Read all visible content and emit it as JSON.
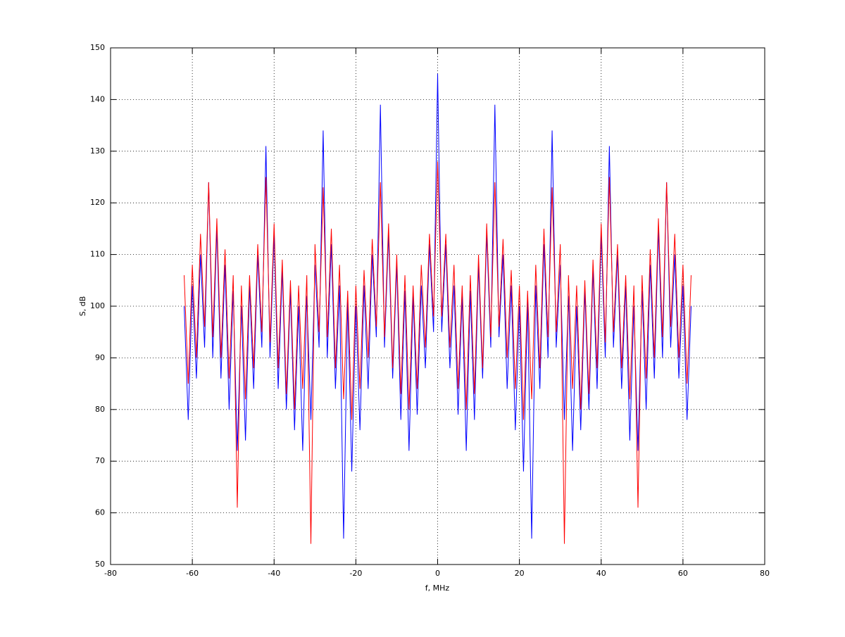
{
  "chart_data": {
    "type": "line",
    "xlabel": "f, MHz",
    "ylabel": "S, dB",
    "x": [
      -62,
      -61,
      -60,
      -59,
      -58,
      -57,
      -56,
      -55,
      -54,
      -53,
      -52,
      -51,
      -50,
      -49,
      -48,
      -47,
      -46,
      -45,
      -44,
      -43,
      -42,
      -41,
      -40,
      -39,
      -38,
      -37,
      -36,
      -35,
      -34,
      -33,
      -32,
      -31,
      -30,
      -29,
      -28,
      -27,
      -26,
      -25,
      -24,
      -23,
      -22,
      -21,
      -20,
      -19,
      -18,
      -17,
      -16,
      -15,
      -14,
      -13,
      -12,
      -11,
      -10,
      -9,
      -8,
      -7,
      -6,
      -5,
      -4,
      -3,
      -2,
      -1,
      0,
      1,
      2,
      3,
      4,
      5,
      6,
      7,
      8,
      9,
      10,
      11,
      12,
      13,
      14,
      15,
      16,
      17,
      18,
      19,
      20,
      21,
      22,
      23,
      24,
      25,
      26,
      27,
      28,
      29,
      30,
      31,
      32,
      33,
      34,
      35,
      36,
      37,
      38,
      39,
      40,
      41,
      42,
      43,
      44,
      45,
      46,
      47,
      48,
      49,
      50,
      51,
      52,
      53,
      54,
      55,
      56,
      57,
      58,
      59,
      60,
      61,
      62
    ],
    "series": [
      {
        "color": "#0000ff",
        "values": [
          100,
          78,
          104,
          86,
          110,
          92,
          124,
          90,
          115,
          86,
          108,
          80,
          103,
          72,
          100,
          74,
          104,
          84,
          110,
          92,
          131,
          90,
          114,
          84,
          107,
          80,
          103,
          76,
          100,
          72,
          102,
          78,
          108,
          92,
          134,
          90,
          112,
          84,
          104,
          55,
          101,
          68,
          100,
          76,
          104,
          84,
          110,
          94,
          139,
          92,
          114,
          86,
          108,
          78,
          103,
          72,
          102,
          79,
          104,
          88,
          112,
          95,
          145,
          95,
          112,
          88,
          104,
          79,
          102,
          72,
          103,
          78,
          108,
          86,
          114,
          92,
          139,
          94,
          110,
          84,
          104,
          76,
          100,
          68,
          101,
          55,
          104,
          84,
          112,
          90,
          134,
          92,
          108,
          78,
          102,
          72,
          100,
          76,
          103,
          80,
          107,
          84,
          114,
          90,
          131,
          92,
          110,
          84,
          104,
          74,
          100,
          72,
          103,
          80,
          108,
          86,
          115,
          90,
          124,
          92,
          110,
          86,
          104,
          78,
          100
        ]
      },
      {
        "color": "#ff0000",
        "values": [
          106,
          85,
          108,
          90,
          114,
          96,
          124,
          94,
          117,
          90,
          111,
          86,
          106,
          61,
          104,
          82,
          106,
          88,
          112,
          95,
          125,
          93,
          116,
          88,
          109,
          83,
          105,
          80,
          104,
          84,
          106,
          54,
          112,
          95,
          123,
          94,
          115,
          88,
          108,
          82,
          103,
          78,
          104,
          84,
          107,
          90,
          113,
          96,
          124,
          94,
          116,
          88,
          110,
          83,
          106,
          80,
          104,
          84,
          108,
          92,
          114,
          98,
          128,
          98,
          114,
          92,
          108,
          84,
          104,
          80,
          106,
          83,
          110,
          88,
          116,
          94,
          124,
          96,
          113,
          90,
          107,
          84,
          104,
          78,
          103,
          82,
          108,
          88,
          115,
          94,
          123,
          95,
          112,
          54,
          106,
          84,
          104,
          80,
          105,
          83,
          109,
          88,
          116,
          93,
          125,
          95,
          112,
          88,
          106,
          82,
          104,
          61,
          106,
          86,
          111,
          90,
          117,
          94,
          124,
          96,
          114,
          90,
          108,
          85,
          106
        ]
      }
    ],
    "xlim": [
      -80,
      80
    ],
    "xticks": [
      -80,
      -60,
      -40,
      -20,
      0,
      20,
      40,
      60,
      80
    ],
    "ylim": [
      50,
      150
    ],
    "yticks": [
      50,
      60,
      70,
      80,
      90,
      100,
      110,
      120,
      130,
      140,
      150
    ],
    "grid": true
  }
}
